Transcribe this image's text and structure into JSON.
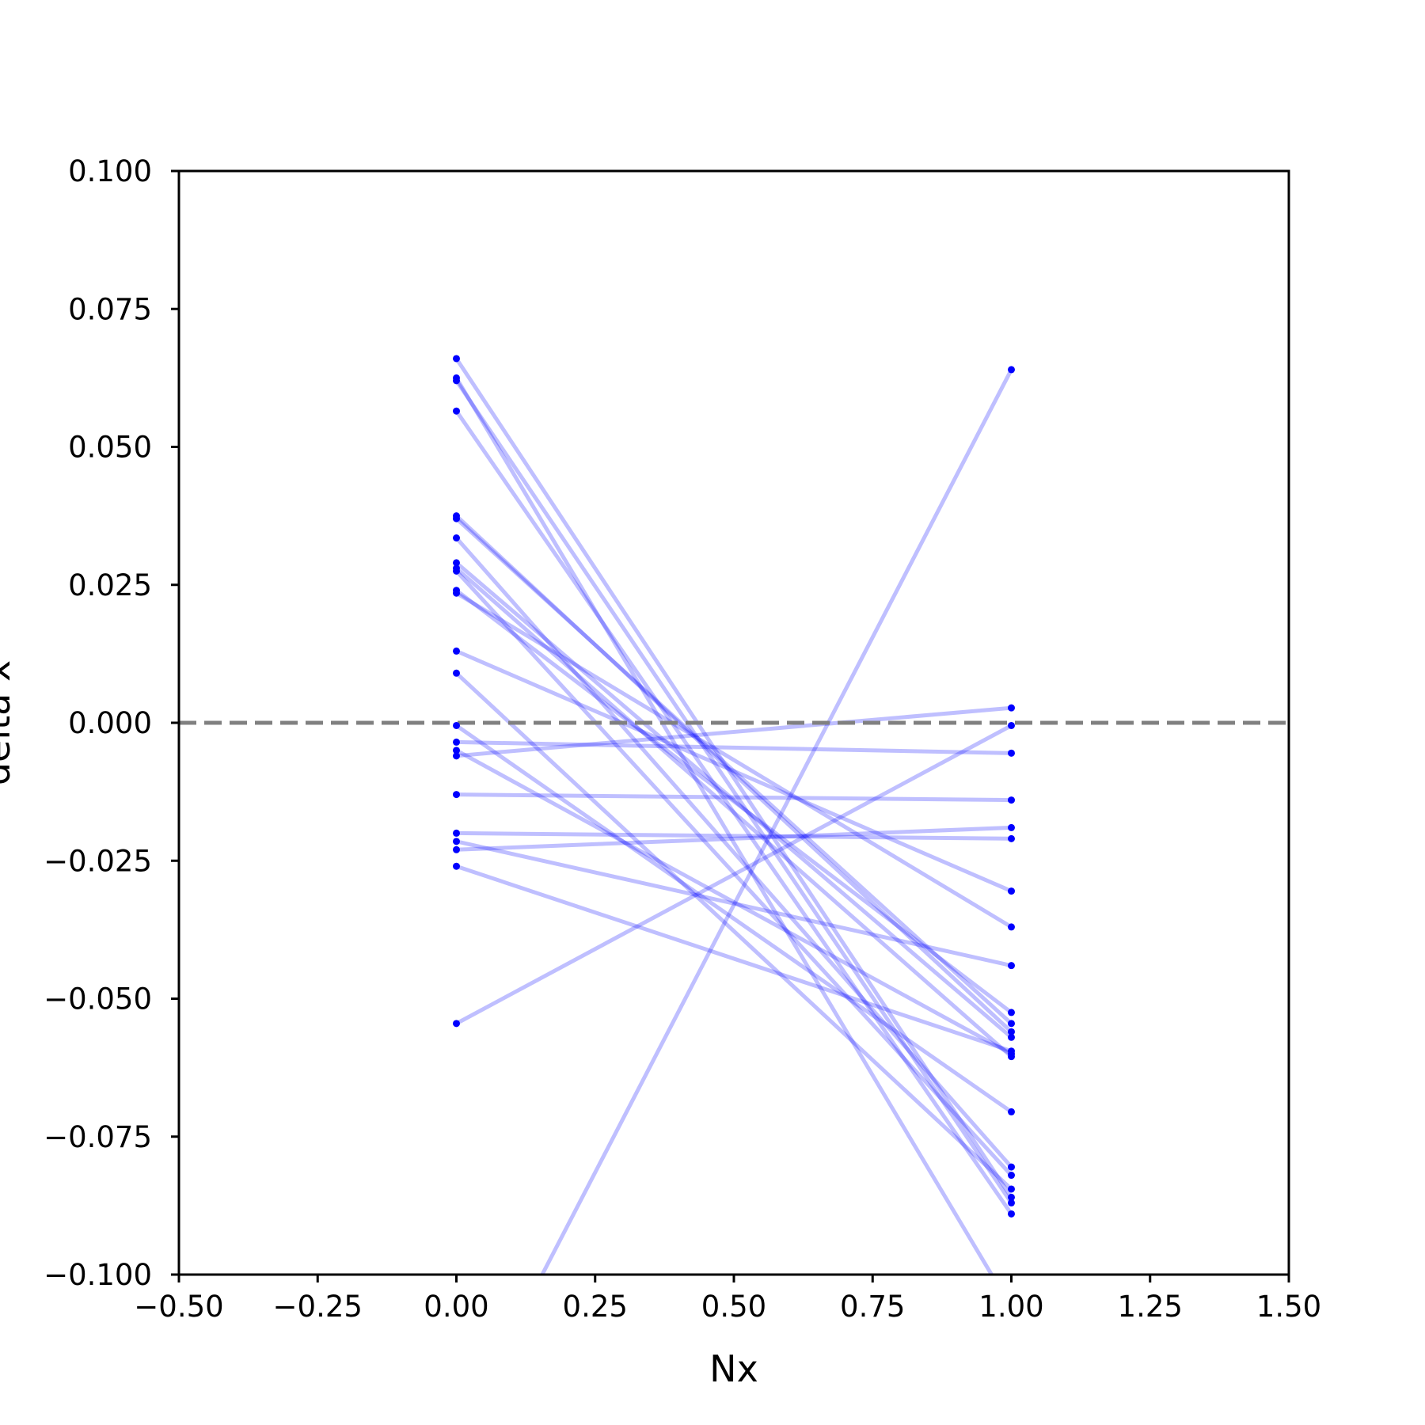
{
  "chart_data": {
    "type": "line",
    "xlabel": "Nx",
    "ylabel": "delta x",
    "xlim": [
      -0.5,
      1.5
    ],
    "ylim": [
      -0.1,
      0.1
    ],
    "xticks": [
      -0.5,
      -0.25,
      0.0,
      0.25,
      0.5,
      0.75,
      1.0,
      1.25,
      1.5
    ],
    "xtick_labels": [
      "−0.50",
      "−0.25",
      "0.00",
      "0.25",
      "0.50",
      "0.75",
      "1.00",
      "1.25",
      "1.50"
    ],
    "yticks": [
      0.1,
      0.075,
      0.05,
      0.025,
      0.0,
      -0.025,
      -0.05,
      -0.075,
      -0.1
    ],
    "ytick_labels": [
      "0.100",
      "0.075",
      "0.050",
      "0.025",
      "0.000",
      "−0.025",
      "−0.050",
      "−0.075",
      "−0.100"
    ],
    "reference_line": {
      "y": 0.0,
      "style": "dashed",
      "color": "#808080"
    },
    "grid": false,
    "legend": "none",
    "line_color": "#0000ff",
    "line_alpha": 0.25,
    "marker_color": "#0000ff",
    "pairs": [
      {
        "y0": 0.066,
        "y1": -0.086
      },
      {
        "y0": 0.0625,
        "y1": -0.106
      },
      {
        "y0": 0.062,
        "y1": -0.087
      },
      {
        "y0": 0.0565,
        "y1": -0.089
      },
      {
        "y0": 0.0375,
        "y1": -0.056
      },
      {
        "y0": 0.037,
        "y1": -0.0545
      },
      {
        "y0": 0.0335,
        "y1": -0.0805
      },
      {
        "y0": 0.029,
        "y1": -0.057
      },
      {
        "y0": 0.028,
        "y1": -0.0605
      },
      {
        "y0": 0.0275,
        "y1": -0.082
      },
      {
        "y0": 0.024,
        "y1": -0.0525
      },
      {
        "y0": 0.0235,
        "y1": -0.037
      },
      {
        "y0": 0.013,
        "y1": -0.0305
      },
      {
        "y0": 0.009,
        "y1": -0.0845
      },
      {
        "y0": -0.0005,
        "y1": -0.0705
      },
      {
        "y0": -0.0035,
        "y1": -0.0055
      },
      {
        "y0": -0.005,
        "y1": -0.06
      },
      {
        "y0": -0.006,
        "y1": 0.0027
      },
      {
        "y0": -0.013,
        "y1": -0.014
      },
      {
        "y0": -0.02,
        "y1": -0.021
      },
      {
        "y0": -0.0215,
        "y1": -0.044
      },
      {
        "y0": -0.023,
        "y1": -0.019
      },
      {
        "y0": -0.026,
        "y1": -0.0595
      },
      {
        "y0": -0.0545,
        "y1": -0.0005
      },
      {
        "y0": -0.13,
        "y1": 0.064
      }
    ]
  }
}
